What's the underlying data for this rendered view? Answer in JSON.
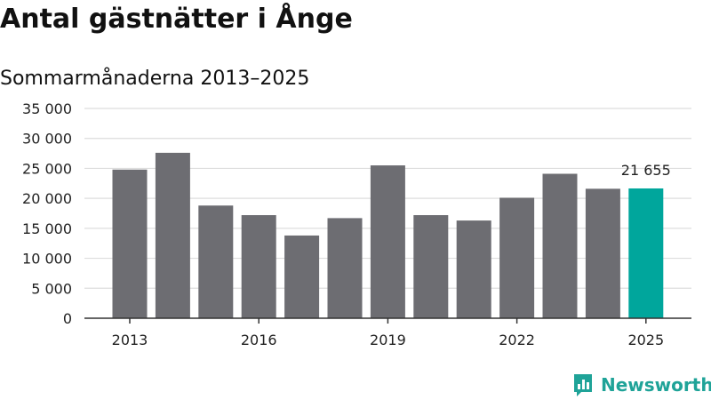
{
  "title": "Antal gästnätter i Ånge",
  "subtitle": "Sommarmånaderna 2013–2025",
  "brand": {
    "name": "Newsworthy",
    "icon": "newsworthy-logo-icon",
    "color": "#1fa398"
  },
  "chart_data": {
    "type": "bar",
    "x": [
      2013,
      2014,
      2015,
      2016,
      2017,
      2018,
      2019,
      2020,
      2021,
      2022,
      2023,
      2024,
      2025
    ],
    "values": [
      24800,
      27600,
      18800,
      17200,
      13800,
      16700,
      25500,
      17200,
      16300,
      20100,
      24100,
      21600,
      21655
    ],
    "ylim": [
      0,
      35000
    ],
    "y_ticks": [
      0,
      5000,
      10000,
      15000,
      20000,
      25000,
      30000,
      35000
    ],
    "y_tick_labels": [
      "0",
      "5 000",
      "10 000",
      "15 000",
      "20 000",
      "25 000",
      "30 000",
      "35 000"
    ],
    "x_ticks": [
      2013,
      2016,
      2019,
      2022,
      2025
    ],
    "x_tick_labels": [
      "2013",
      "2016",
      "2019",
      "2022",
      "2025"
    ],
    "highlight": {
      "x": 2025,
      "label": "21 655"
    },
    "colors": {
      "bar": "#6d6d72",
      "highlight": "#00a69c",
      "grid": "#dddddd",
      "axis": "#333333"
    },
    "grid": true
  }
}
